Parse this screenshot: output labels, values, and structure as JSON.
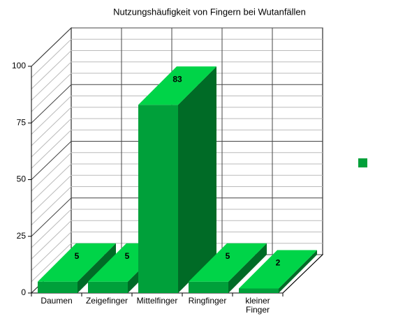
{
  "chart_data": {
    "type": "bar3d",
    "title": "Nutzungshäufigkeit von Fingern bei Wutanfällen",
    "categories": [
      "Daumen",
      "Zeigefinger",
      "Mittelfinger",
      "Ringfinger",
      "kleiner Finger"
    ],
    "values": [
      5,
      5,
      83,
      5,
      2
    ],
    "color": "#00a03a",
    "ylim": [
      0,
      100
    ],
    "yticks": [
      0,
      25,
      50,
      75,
      100
    ],
    "grid": true,
    "legend": "right"
  }
}
